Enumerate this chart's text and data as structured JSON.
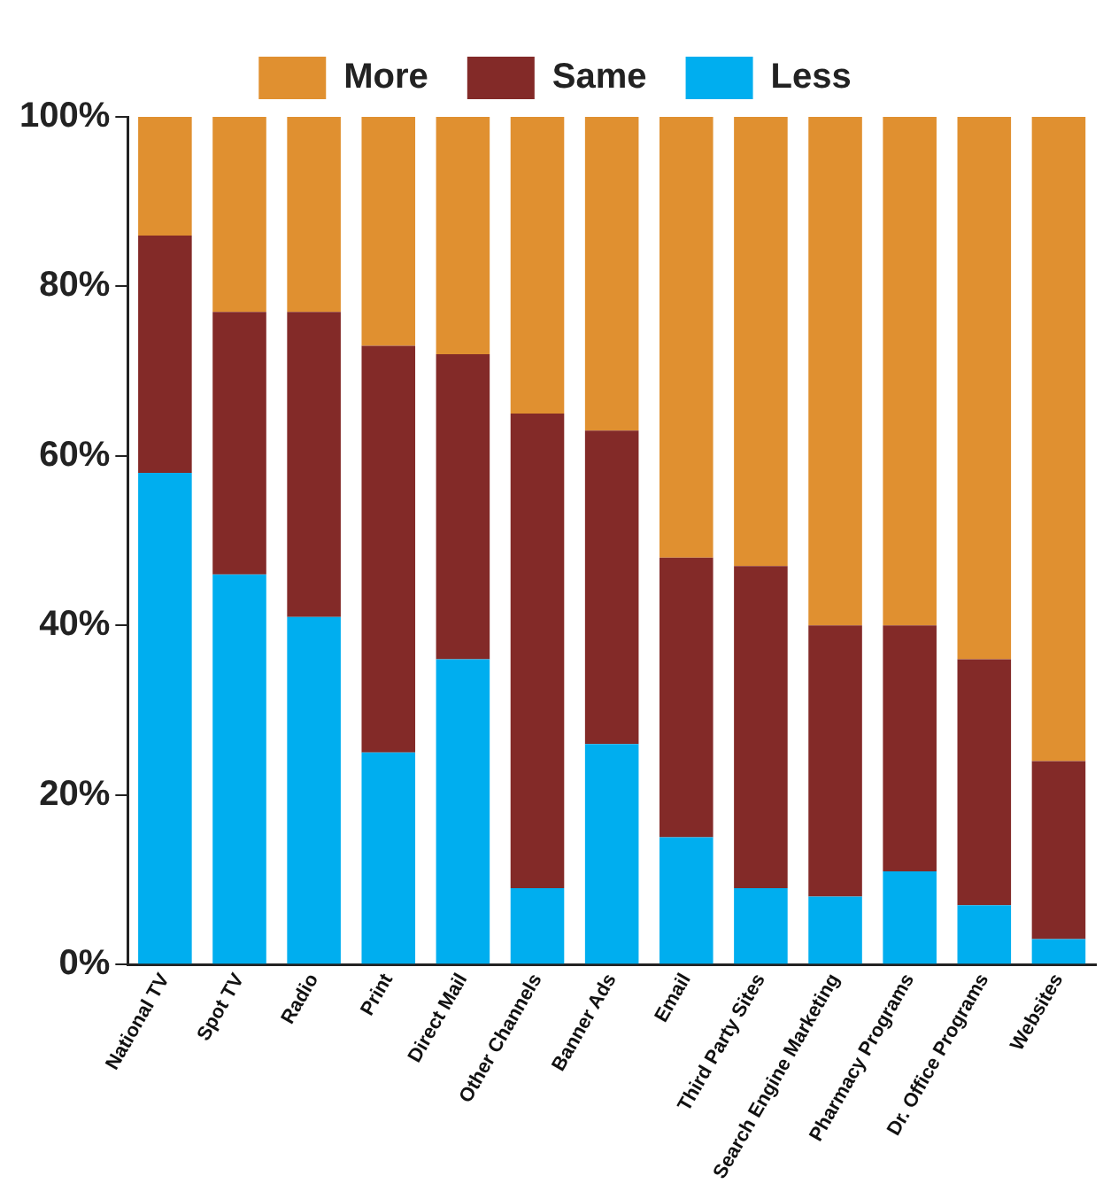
{
  "chart_data": {
    "type": "bar",
    "stacked": true,
    "categories": [
      "National TV",
      "Spot TV",
      "Radio",
      "Print",
      "Direct Mail",
      "Other Channels",
      "Banner Ads",
      "Email",
      "Third Party Sites",
      "Search Engine Marketing",
      "Pharmacy Programs",
      "Dr. Office Programs",
      "Websites"
    ],
    "series": [
      {
        "name": "Less",
        "color": "#00aeef",
        "values": [
          58,
          46,
          41,
          25,
          36,
          9,
          26,
          15,
          9,
          8,
          11,
          7,
          3
        ]
      },
      {
        "name": "Same",
        "color": "#832a28",
        "values": [
          28,
          31,
          36,
          48,
          36,
          56,
          37,
          33,
          38,
          32,
          29,
          29,
          21
        ]
      },
      {
        "name": "More",
        "color": "#e09030",
        "values": [
          14,
          23,
          23,
          27,
          28,
          35,
          37,
          52,
          53,
          60,
          60,
          64,
          76
        ]
      }
    ],
    "ylim": [
      0,
      100
    ],
    "yticks": [
      {
        "value": 0,
        "label": "0%"
      },
      {
        "value": 20,
        "label": "20%"
      },
      {
        "value": 40,
        "label": "40%"
      },
      {
        "value": 60,
        "label": "60%"
      },
      {
        "value": 80,
        "label": "80%"
      },
      {
        "value": 100,
        "label": "100%"
      }
    ],
    "grid": false,
    "legend": "top"
  }
}
